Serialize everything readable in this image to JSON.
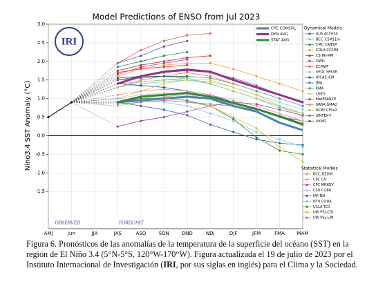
{
  "chart_data": {
    "type": "line",
    "title": "Model Predictions of ENSO from Jul 2023",
    "y_label": "Nino3.4 SST Anomaly (°C)",
    "logo": "IRI",
    "annotations": [
      "OBSERVED",
      "FORECAST"
    ],
    "categories": [
      "AMJ",
      "Jun",
      "JJA",
      "JAS",
      "ASO",
      "SON",
      "OND",
      "NDJ",
      "DJF",
      "JFM",
      "FMA",
      "MAM"
    ],
    "ylim": [
      -2.5,
      3.0
    ],
    "yticks": [
      {
        "value": 3,
        "label": "3.0"
      },
      2.5,
      {
        "value": 2,
        "label": "2.0"
      },
      1.5,
      {
        "value": 1,
        "label": "1.0"
      },
      0.5,
      {
        "value": 0,
        "label": "0.0"
      },
      -0.5,
      {
        "value": -1,
        "label": "-1.0"
      },
      -1.5
    ],
    "grid": true,
    "observed_values": [
      0.5,
      0.9,
      null,
      null,
      null,
      null,
      null,
      null,
      null,
      null,
      null,
      null
    ],
    "series_groups": [
      {
        "series": [
          {
            "name": "CPC CONSOL",
            "color": "#4f7fb3",
            "values": [
              null,
              null,
              null,
              0.9,
              0.95,
              1.0,
              1.05,
              1.0,
              0.8,
              0.65,
              0.35,
              0.15
            ]
          },
          {
            "name": "DYN AVG",
            "color": "#9b2f7f",
            "values": [
              null,
              null,
              null,
              1.4,
              1.6,
              1.72,
              1.78,
              1.72,
              1.5,
              1.3,
              1.1,
              0.9
            ]
          },
          {
            "name": "STAT AVG",
            "color": "#2e8b2e",
            "values": [
              null,
              null,
              null,
              0.9,
              1.05,
              1.1,
              1.15,
              1.05,
              0.88,
              0.72,
              0.52,
              0.3
            ]
          }
        ]
      },
      {
        "title": "Dynamical Models",
        "series": [
          {
            "name": "AUS ACCESS",
            "color": "#3a5fb0",
            "values": [
              null,
              null,
              null,
              1.95,
              2.15,
              2.4,
              2.55,
              null,
              null,
              null,
              null,
              null
            ]
          },
          {
            "name": "BCC_CSM11m",
            "color": "#6fb7e8",
            "values": [
              null,
              null,
              null,
              1.4,
              1.45,
              1.5,
              1.5,
              1.4,
              1.2,
              1.0,
              0.75,
              0.6
            ]
          },
          {
            "name": "CMC CANSIP",
            "color": "#2e8b57",
            "values": [
              null,
              null,
              null,
              1.85,
              2.0,
              2.15,
              2.25,
              null,
              null,
              null,
              null,
              null
            ]
          },
          {
            "name": "COLA CCSM4",
            "color": "#f0a040",
            "values": [
              null,
              null,
              null,
              1.6,
              1.8,
              1.9,
              1.95,
              1.95,
              1.8,
              1.6,
              1.4,
              1.2
            ]
          },
          {
            "name": "CS-IRI-MM",
            "color": "#d62728",
            "values": [
              null,
              null,
              null,
              1.75,
              1.9,
              2.0,
              2.1,
              2.15,
              null,
              null,
              null,
              null
            ]
          },
          {
            "name": "DWD",
            "color": "#b03aa0",
            "values": [
              null,
              null,
              null,
              1.65,
              1.85,
              1.95,
              2.05,
              null,
              null,
              null,
              null,
              null
            ]
          },
          {
            "name": "ECMWF",
            "color": "#e06060",
            "values": [
              null,
              null,
              null,
              1.95,
              2.3,
              2.55,
              2.7,
              2.75,
              null,
              null,
              null,
              null
            ]
          },
          {
            "name": "GFDL SPEAR",
            "color": "#8fc8e8",
            "values": [
              null,
              null,
              null,
              1.3,
              1.4,
              1.45,
              1.5,
              1.45,
              1.3,
              1.1,
              0.9,
              0.7
            ]
          },
          {
            "name": "IOCAS ICM",
            "color": "#2a3f8f",
            "values": [
              null,
              null,
              null,
              1.4,
              1.35,
              1.3,
              1.2,
              1.1,
              0.9,
              0.7,
              0.5,
              0.4
            ]
          },
          {
            "name": "JMA",
            "color": "#3b75c4",
            "values": [
              null,
              null,
              null,
              1.5,
              1.55,
              1.6,
              1.55,
              null,
              null,
              null,
              null,
              null
            ]
          },
          {
            "name": "KMA",
            "color": "#3aa0a0",
            "values": [
              null,
              null,
              null,
              1.5,
              1.6,
              1.6,
              1.6,
              1.55,
              1.4,
              1.2,
              1.0,
              0.8
            ]
          },
          {
            "name": "LDEO",
            "color": "#e8c830",
            "values": [
              null,
              null,
              null,
              1.0,
              1.2,
              1.4,
              1.5,
              1.5,
              1.3,
              1.1,
              0.8,
              0.5
            ]
          },
          {
            "name": "MetFRANCE",
            "color": "#e83030",
            "values": [
              null,
              null,
              null,
              1.7,
              1.8,
              1.85,
              1.9,
              null,
              null,
              null,
              null,
              null
            ]
          },
          {
            "name": "NASA GMAO",
            "color": "#f08030",
            "values": [
              null,
              null,
              null,
              1.3,
              1.5,
              1.6,
              1.7,
              1.6,
              1.4,
              null,
              null,
              null
            ]
          },
          {
            "name": "NCEP CFSv2",
            "color": "#90d070",
            "values": [
              null,
              null,
              null,
              1.3,
              1.45,
              1.5,
              1.55,
              1.4,
              1.2,
              1.0,
              0.8,
              0.6
            ]
          },
          {
            "name": "SINTEX-F",
            "color": "#8050b0",
            "values": [
              null,
              null,
              null,
              1.5,
              1.6,
              1.7,
              1.75,
              1.7,
              1.55,
              1.35,
              1.1,
              0.9
            ]
          },
          {
            "name": "UKMO",
            "color": "#1f6f3f",
            "values": [
              null,
              null,
              null,
              1.55,
              1.6,
              1.6,
              1.6,
              null,
              null,
              null,
              null,
              null
            ]
          }
        ]
      },
      {
        "title": "Statistical Models",
        "series": [
          {
            "name": "BCC_RZDM",
            "color": "#e0a060",
            "values": [
              null,
              null,
              null,
              0.9,
              1.0,
              1.05,
              1.1,
              1.05,
              0.9,
              0.7,
              0.5,
              0.35
            ]
          },
          {
            "name": "CPC CA",
            "color": "#f09090",
            "values": [
              null,
              null,
              null,
              1.1,
              1.2,
              1.25,
              1.2,
              1.1,
              0.95,
              0.8,
              0.6,
              0.4
            ]
          },
          {
            "name": "CPC MRKOV",
            "color": "#a040a0",
            "values": [
              null,
              null,
              null,
              0.25,
              0.4,
              0.5,
              0.65,
              0.8,
              0.9,
              0.85,
              0.7,
              0.55
            ]
          },
          {
            "name": "CSU CLIPR",
            "color": "#c0c0e0",
            "values": [
              null,
              null,
              null,
              1.0,
              1.1,
              1.15,
              1.1,
              1.0,
              0.85,
              0.7,
              0.55,
              0.4
            ]
          },
          {
            "name": "IAP NN",
            "color": "#3060c0",
            "values": [
              null,
              null,
              null,
              0.9,
              0.8,
              0.7,
              0.55,
              0.3,
              0.1,
              -0.1,
              -0.2,
              -0.25
            ]
          },
          {
            "name": "NTU CODA",
            "color": "#80c8d8",
            "values": [
              null,
              null,
              null,
              1.0,
              0.95,
              0.9,
              0.8,
              0.6,
              0.4,
              0.1,
              -0.1,
              -0.3
            ]
          },
          {
            "name": "UCLA-TCD",
            "color": "#2e8b2e",
            "values": [
              null,
              null,
              null,
              0.9,
              1.0,
              1.0,
              0.95,
              0.8,
              0.45,
              -0.05,
              -0.4,
              -0.5
            ]
          },
          {
            "name": "UW PSL-CSI",
            "color": "#e0c040",
            "values": [
              null,
              null,
              null,
              0.8,
              0.9,
              0.95,
              0.9,
              0.8,
              0.5,
              0.2,
              -0.3,
              -0.7
            ]
          },
          {
            "name": "UW PSL-LIM",
            "color": "#b070c0",
            "values": [
              null,
              null,
              null,
              0.85,
              0.9,
              0.95,
              0.9,
              0.85,
              0.8,
              0.7,
              0.5,
              0.3
            ]
          }
        ]
      }
    ],
    "caption": {
      "before": "Figura 6. Pronósticos de las anomalías de la temperatura de la superficie del océano (SST) en la región de El Niño 3.4 (5°N-5°S, 120°W-170°W). Figura actualizada el 19 de julio de 2023 por el Instituto Internacional de Investigación (",
      "bold": "IRI",
      "after": ", por sus siglas en inglés) para el Clima y la Sociedad."
    }
  }
}
